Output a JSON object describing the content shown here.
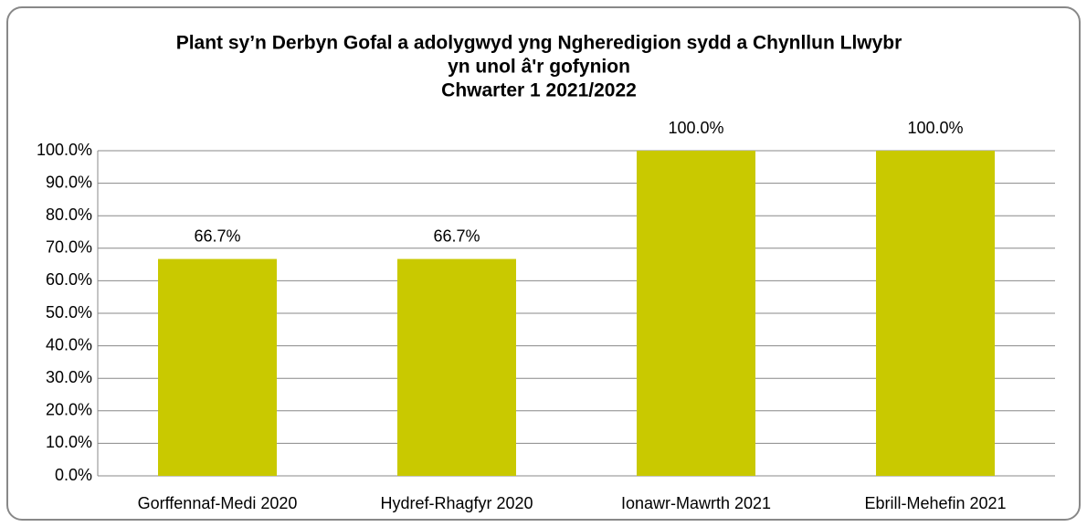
{
  "chart_data": {
    "type": "bar",
    "title": [
      "Plant sy’n Derbyn Gofal a adolygwyd yng Ngheredigion sydd a Chynllun Llwybr",
      "yn unol â'r gofynion",
      "Chwarter 1  2021/2022"
    ],
    "categories": [
      "Gorffennaf-Medi 2020",
      "Hydref-Rhagfyr 2020",
      "Ionawr-Mawrth 2021",
      "Ebrill-Mehefin 2021"
    ],
    "values": [
      66.7,
      66.7,
      100,
      100
    ],
    "value_labels": [
      "66.7%",
      "66.7%",
      "100.0%",
      "100.0%"
    ],
    "color": "#c9c900",
    "ylim": [
      0,
      100
    ],
    "yticks": [
      {
        "value": 0,
        "label": "0.0%"
      },
      {
        "value": 10,
        "label": "10.0%"
      },
      {
        "value": 20,
        "label": "20.0%"
      },
      {
        "value": 30,
        "label": "30.0%"
      },
      {
        "value": 40,
        "label": "40.0%"
      },
      {
        "value": 50,
        "label": "50.0%"
      },
      {
        "value": 60,
        "label": "60.0%"
      },
      {
        "value": 70,
        "label": "70.0%"
      },
      {
        "value": 80,
        "label": "80.0%"
      },
      {
        "value": 90,
        "label": "90.0%"
      },
      {
        "value": 100,
        "label": "100.0%"
      }
    ],
    "grid": true
  }
}
